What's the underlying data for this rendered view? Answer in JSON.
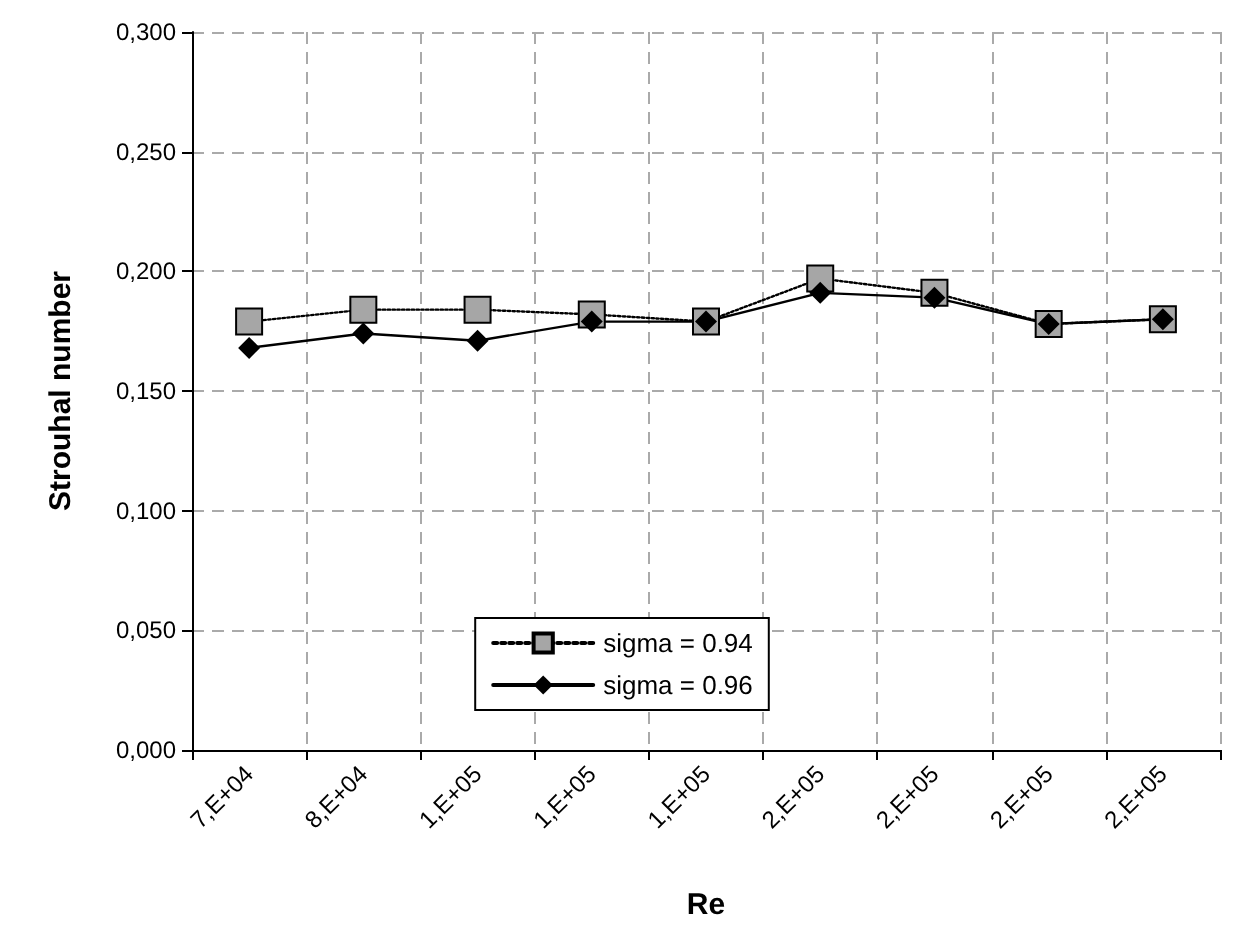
{
  "chart_data": {
    "type": "line",
    "xlabel": "Re",
    "ylabel": "Strouhal number",
    "categories": [
      "7,E+04",
      "8,E+04",
      "1,E+05",
      "1,E+05",
      "1,E+05",
      "2,E+05",
      "2,E+05",
      "2,E+05",
      "2,E+05"
    ],
    "series": [
      {
        "name": "sigma = 0.94",
        "color": "#a6a6a6",
        "marker": "square",
        "line_style": "dotted",
        "values": [
          0.179,
          0.184,
          0.184,
          0.182,
          0.179,
          0.197,
          0.191,
          0.178,
          0.18
        ]
      },
      {
        "name": "sigma = 0.96",
        "color": "#000000",
        "marker": "diamond",
        "line_style": "solid",
        "values": [
          0.168,
          0.174,
          0.171,
          0.179,
          0.179,
          0.191,
          0.189,
          0.178,
          0.18
        ]
      }
    ],
    "ylim": [
      0,
      0.3
    ],
    "yticks": [
      {
        "value": 0,
        "label": "0,000"
      },
      {
        "value": 0.05,
        "label": "0,050"
      },
      {
        "value": 0.1,
        "label": "0,100"
      },
      {
        "value": 0.15,
        "label": "0,150"
      },
      {
        "value": 0.2,
        "label": "0,200"
      },
      {
        "value": 0.25,
        "label": "0,250"
      },
      {
        "value": 0.3,
        "label": "0,300"
      }
    ],
    "grid": true,
    "legend": "bottom"
  }
}
